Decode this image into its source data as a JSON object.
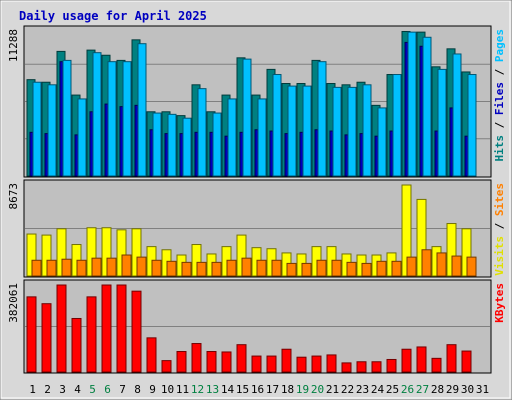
{
  "chart_data": {
    "type": "bar",
    "title": "Daily usage for April 2025",
    "x": [
      "1",
      "2",
      "3",
      "4",
      "5",
      "6",
      "7",
      "8",
      "9",
      "10",
      "11",
      "12",
      "13",
      "14",
      "15",
      "16",
      "17",
      "18",
      "19",
      "20",
      "21",
      "22",
      "23",
      "24",
      "25",
      "26",
      "27",
      "28",
      "29",
      "30",
      "31"
    ],
    "weekend_days": [
      "5",
      "6",
      "12",
      "13",
      "19",
      "20",
      "26",
      "27"
    ],
    "panels": [
      {
        "name": "hits-files-pages",
        "max_label": "11288",
        "ymax": 11288,
        "legend": [
          {
            "text": "Hits",
            "color": "#008080"
          },
          {
            "text": "Files",
            "color": "#0000c0"
          },
          {
            "text": "Pages",
            "color": "#00c0ff"
          }
        ],
        "series": [
          {
            "name": "Hits",
            "color": "#008080",
            "values": [
              7500,
              7300,
              9700,
              6300,
              9800,
              9400,
              9000,
              10600,
              5000,
              5000,
              4700,
              7100,
              5000,
              6300,
              9200,
              6300,
              8300,
              7200,
              7200,
              9000,
              7200,
              7100,
              7300,
              5500,
              7900,
              11250,
              11200,
              8500,
              9900,
              8100,
              0
            ]
          },
          {
            "name": "Files",
            "color": "#0000c0",
            "values": [
              3400,
              3300,
              8900,
              3200,
              5000,
              5600,
              5400,
              5500,
              3600,
              3300,
              3300,
              3400,
              3400,
              3100,
              3400,
              3600,
              3500,
              3300,
              3400,
              3600,
              3500,
              3200,
              3300,
              3100,
              3500,
              10400,
              10100,
              3500,
              5300,
              3100,
              0
            ]
          },
          {
            "name": "Pages",
            "color": "#00c0ff",
            "values": [
              7300,
              7100,
              9000,
              6000,
              9600,
              8900,
              8900,
              10300,
              4900,
              4800,
              4500,
              6800,
              4900,
              6000,
              9100,
              6000,
              7900,
              7000,
              7000,
              8900,
              6900,
              6900,
              7100,
              5300,
              7900,
              11200,
              10800,
              8300,
              9500,
              7900,
              0
            ]
          }
        ]
      },
      {
        "name": "visits-sites",
        "max_label": "8673",
        "ymax": 8673,
        "legend": [
          {
            "text": "Visits",
            "color": "#e0e000"
          },
          {
            "text": "Sites",
            "color": "#ff8000"
          }
        ],
        "series": [
          {
            "name": "Visits",
            "color": "#ffff00",
            "values": [
              4000,
              3900,
              4500,
              3000,
              4600,
              4600,
              4400,
              4500,
              2800,
              2500,
              2000,
              3000,
              2100,
              2800,
              3900,
              2700,
              2600,
              2200,
              2100,
              2800,
              2800,
              2100,
              2000,
              2000,
              2200,
              8673,
              7300,
              2800,
              5000,
              4500,
              0
            ]
          },
          {
            "name": "Sites",
            "color": "#ff8000",
            "values": [
              1500,
              1500,
              1600,
              1500,
              1700,
              1700,
              2000,
              1800,
              1500,
              1400,
              1300,
              1300,
              1300,
              1500,
              1700,
              1500,
              1500,
              1200,
              1200,
              1500,
              1500,
              1300,
              1200,
              1400,
              1400,
              1800,
              2500,
              2200,
              1900,
              1800,
              0
            ]
          }
        ]
      },
      {
        "name": "kbytes",
        "max_label": "382061",
        "ymax": 382061,
        "legend": [
          {
            "text": "KBytes",
            "color": "#ff0000"
          }
        ],
        "series": [
          {
            "name": "KBytes",
            "color": "#ff0000",
            "values": [
              330000,
              300000,
              382061,
              235000,
              330000,
              382061,
              382061,
              355000,
              150000,
              50000,
              90000,
              125000,
              90000,
              88000,
              120000,
              70000,
              70000,
              100000,
              65000,
              70000,
              75000,
              40000,
              45000,
              45000,
              55000,
              100000,
              110000,
              60000,
              120000,
              92000,
              0
            ]
          }
        ]
      }
    ]
  }
}
